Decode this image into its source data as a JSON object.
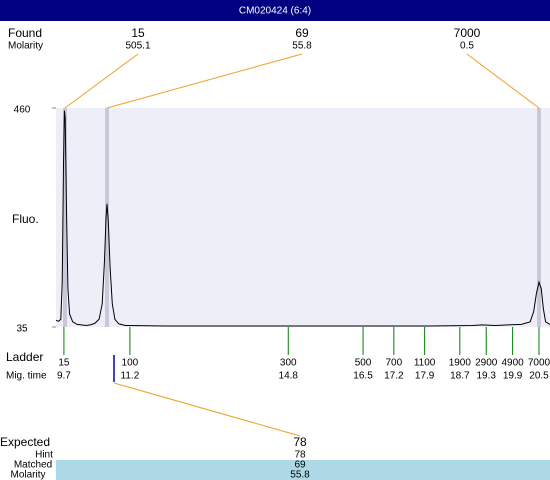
{
  "header": {
    "title": "CM020424 (6:4)"
  },
  "found": {
    "label": "Found",
    "sublabel": "Molarity",
    "peaks": [
      {
        "size": 15,
        "molarity": 505.1
      },
      {
        "size": 69,
        "molarity": 55.8
      },
      {
        "size": 7000,
        "molarity": 0.5
      }
    ]
  },
  "chart_data": {
    "type": "line",
    "ylabel": "Fluo.",
    "color": "#000000",
    "xlim": [
      9.52,
      20.75
    ],
    "ylim": [
      35,
      460
    ],
    "yticks": [
      35,
      460
    ],
    "x": [
      9.52,
      9.58,
      9.63,
      9.66,
      9.69,
      9.71,
      9.73,
      9.76,
      9.79,
      9.83,
      9.9,
      10.0,
      10.1,
      10.2,
      10.3,
      10.4,
      10.5,
      10.57,
      10.62,
      10.66,
      10.68,
      10.71,
      10.75,
      10.8,
      10.86,
      10.95,
      11.1,
      12,
      14,
      16,
      18,
      19.0,
      19.2,
      19.5,
      19.8,
      20.1,
      20.3,
      20.38,
      20.44,
      20.5,
      20.55,
      20.6,
      20.65,
      20.75
    ],
    "values": [
      48,
      46,
      50,
      120,
      350,
      455,
      440,
      250,
      110,
      60,
      45,
      40,
      39,
      38,
      39,
      42,
      50,
      80,
      160,
      250,
      274,
      240,
      150,
      80,
      50,
      41,
      38,
      37,
      37,
      37,
      37,
      38,
      39,
      38,
      39,
      40,
      45,
      65,
      100,
      122,
      110,
      70,
      45,
      40
    ]
  },
  "ladder": {
    "label": "Ladder",
    "sublabel": "Mig. time",
    "sizes": [
      15,
      100,
      300,
      500,
      700,
      1100,
      1900,
      2900,
      4900,
      7000
    ],
    "times": [
      9.7,
      11.2,
      14.8,
      16.5,
      17.2,
      17.9,
      18.7,
      19.3,
      19.9,
      20.5
    ]
  },
  "expected": {
    "label": "Expected",
    "value": 78,
    "rows": [
      {
        "label": "Hint",
        "value": 78
      },
      {
        "label": "Matched",
        "value": 69
      },
      {
        "label": "Molarity",
        "value": 55.8
      }
    ]
  }
}
